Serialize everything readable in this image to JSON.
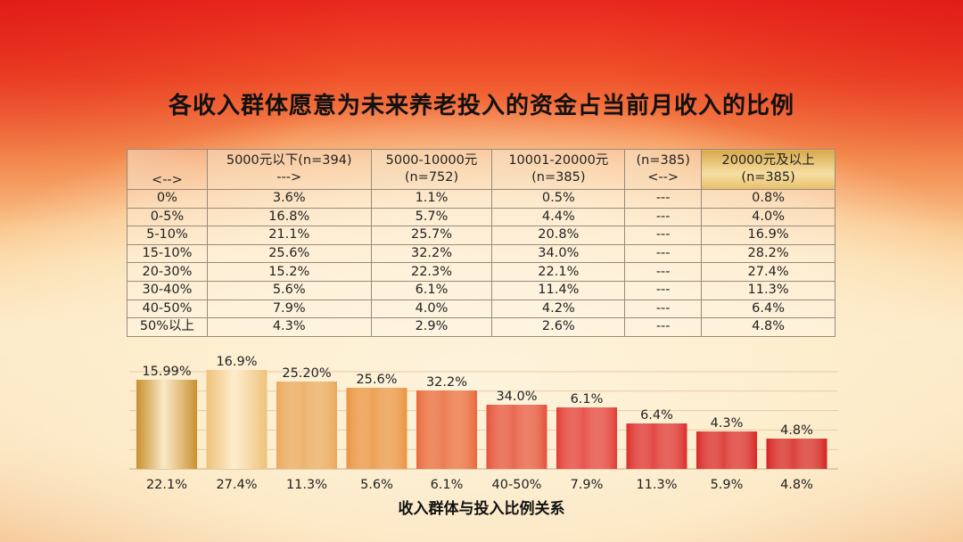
{
  "title": "各收入群体愿意为未来养老投入的资金占当前月收入的比例",
  "table": {
    "headers": [
      [
        "",
        "<-->"
      ],
      [
        "5000元以下(n=394)",
        "--->"
      ],
      [
        "5000-10000元",
        "(n=752)"
      ],
      [
        "10001-20000元",
        "(n=385)"
      ],
      [
        "(n=385)",
        "<-->"
      ],
      [
        "20000元及以上",
        "(n=385)"
      ]
    ],
    "rows": [
      [
        "0%",
        "3.6%",
        "1.1%",
        "0.5%",
        "---",
        "0.8%"
      ],
      [
        "0-5%",
        "16.8%",
        "5.7%",
        "4.4%",
        "---",
        "4.0%"
      ],
      [
        "5-10%",
        "21.1%",
        "25.7%",
        "20.8%",
        "---",
        "16.9%"
      ],
      [
        "15-10%",
        "25.6%",
        "32.2%",
        "34.0%",
        "---",
        "28.2%"
      ],
      [
        "20-30%",
        "15.2%",
        "22.3%",
        "22.1%",
        "---",
        "27.4%"
      ],
      [
        "30-40%",
        "5.6%",
        "6.1%",
        "11.4%",
        "---",
        "11.3%"
      ],
      [
        "40-50%",
        "7.9%",
        "4.0%",
        "4.2%",
        "---",
        "6.4%"
      ],
      [
        "50%以上",
        "4.3%",
        "2.9%",
        "2.6%",
        "---",
        "4.8%"
      ]
    ]
  },
  "chart_data": {
    "type": "bar",
    "title": "",
    "xlabel": "收入群体与投入比例关系",
    "ylabel": "",
    "grid": true,
    "top_labels": [
      "15.99%",
      "16.9%",
      "25.20%",
      "25.6%",
      "32.2%",
      "34.0%",
      "6.1%",
      "6.4%",
      "4.3%",
      "4.8%"
    ],
    "categories": [
      "22.1%",
      "27.4%",
      "11.3%",
      "5.6%",
      "6.1%",
      "40-50%",
      "7.9%",
      "11.3%",
      "5.9%",
      "4.8%"
    ],
    "values": [
      15.99,
      16.9,
      25.2,
      25.6,
      32.2,
      34.0,
      6.1,
      6.4,
      4.3,
      4.8
    ],
    "colors": [
      "#c9902f",
      "#eec27a",
      "#e9a85c",
      "#ea9340",
      "#e8683a",
      "#e5503a",
      "#e23a36",
      "#dc2b2b",
      "#d82626",
      "#d42222"
    ]
  }
}
